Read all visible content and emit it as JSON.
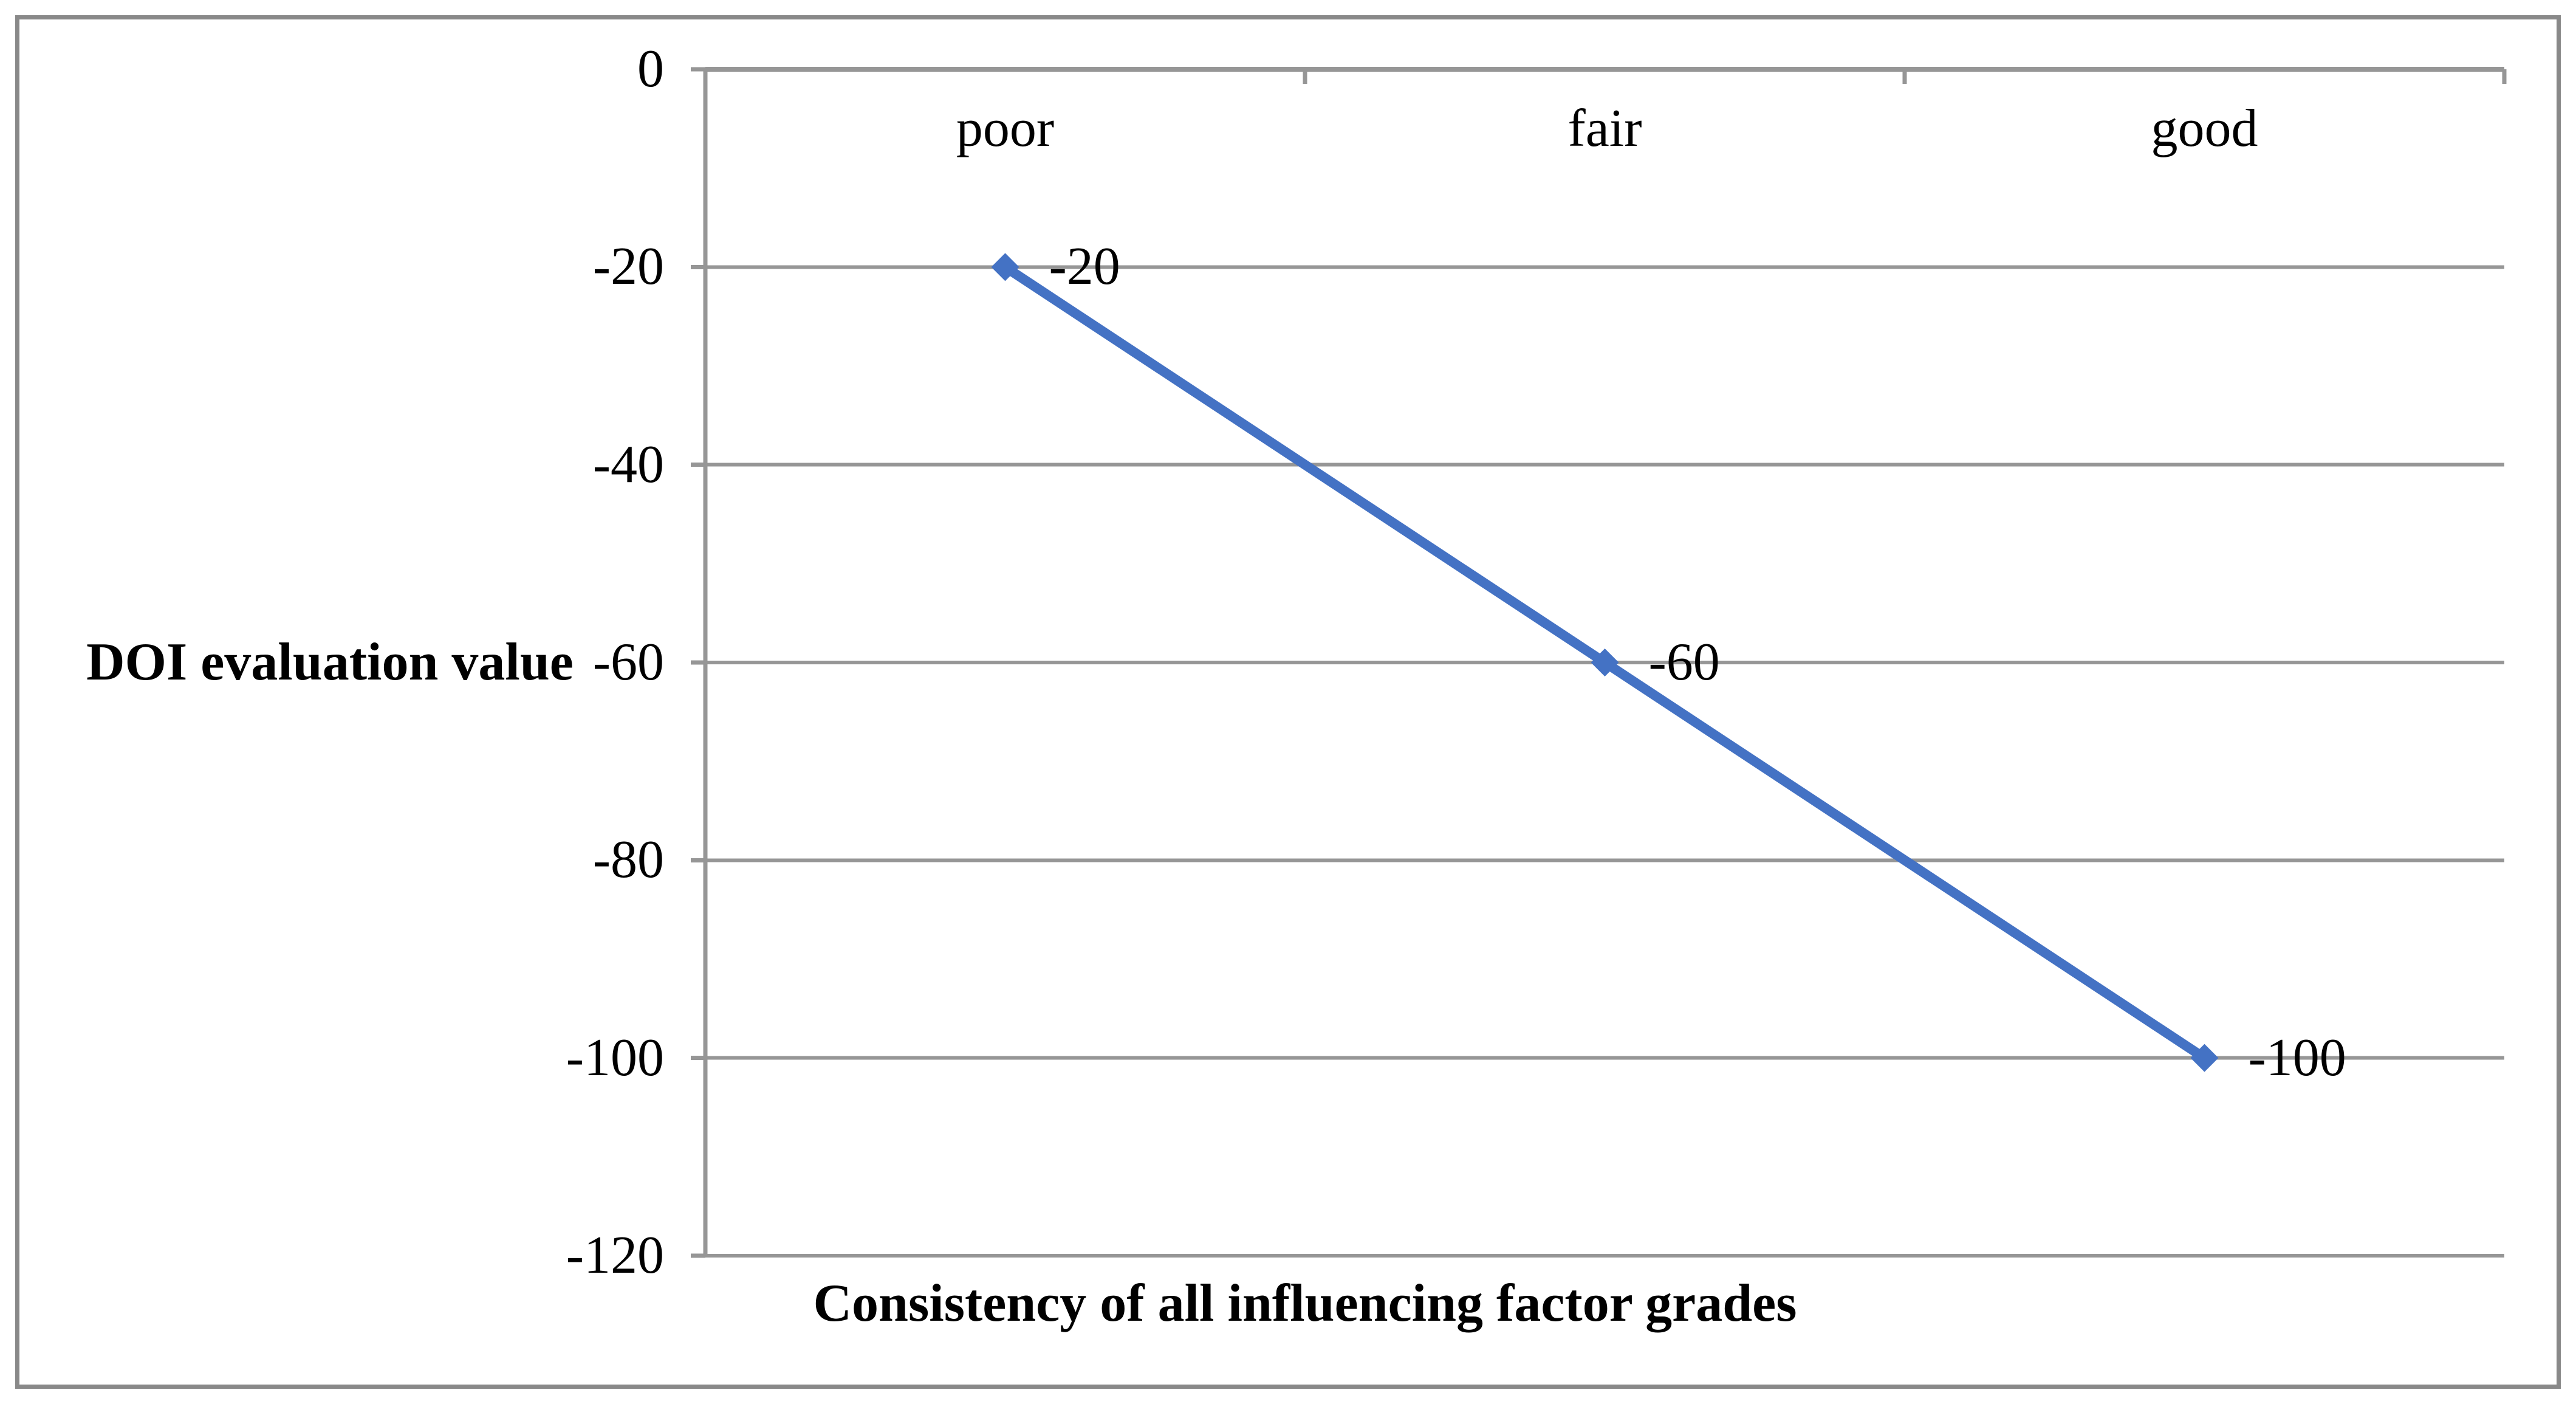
{
  "figure": {
    "background": "#ffffff",
    "border_color": "#898989"
  },
  "chart_data": {
    "type": "line",
    "categories": [
      "poor",
      "fair",
      "good"
    ],
    "series": [
      {
        "name": "DOI evaluation value",
        "values": [
          -20,
          -60,
          -100
        ],
        "data_labels": [
          "-20",
          "-60",
          "-100"
        ],
        "color": "#4472C4",
        "marker": "diamond"
      }
    ],
    "title": "",
    "xlabel": "Consistency of all influencing factor grades",
    "ylabel": "DOI evaluation value",
    "ylim": [
      -120,
      0
    ],
    "yticks": [
      "0",
      "-20",
      "-40",
      "-60",
      "-80",
      "-100",
      "-120"
    ],
    "grid": "horizontal",
    "gridline_color": "#969696",
    "axis_color": "#969696",
    "tick_marks": "outside",
    "legend": "none",
    "text_color": "#000000"
  }
}
